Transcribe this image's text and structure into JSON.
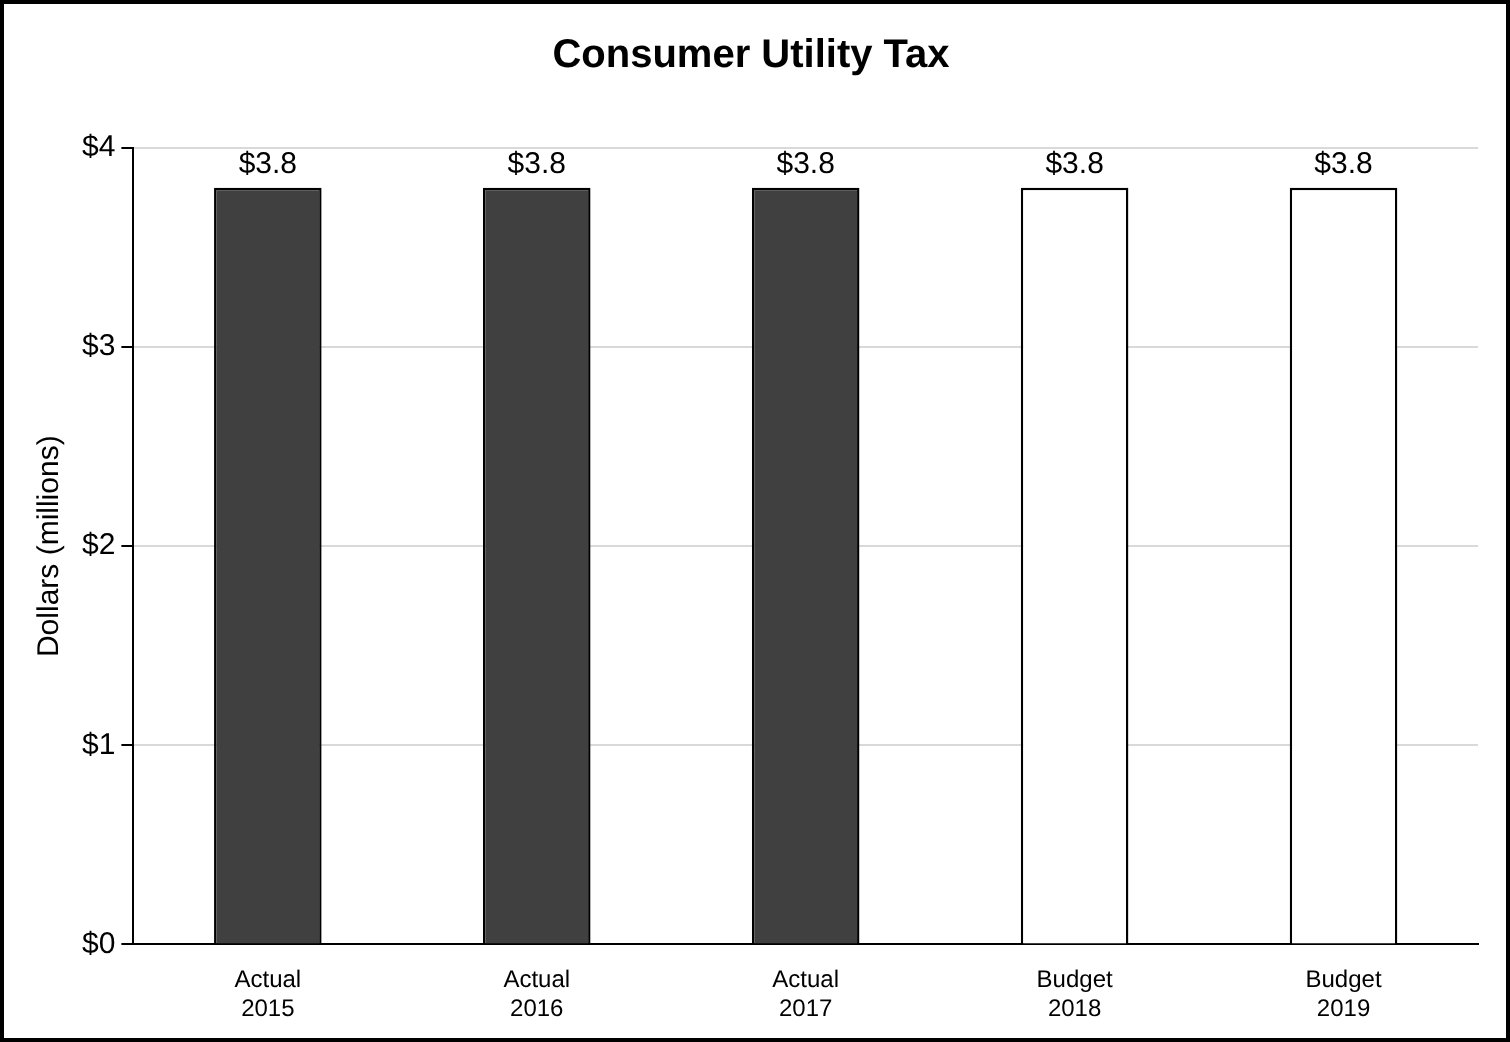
{
  "chart_data": {
    "type": "bar",
    "title": "Consumer Utility Tax",
    "ylabel": "Dollars (millions)",
    "categories": [
      "Actual\n2015",
      "Actual\n2016",
      "Actual\n2017",
      "Budget\n2018",
      "Budget\n2019"
    ],
    "values": [
      3.8,
      3.8,
      3.8,
      3.8,
      3.8
    ],
    "colors": [
      "#404040",
      "#404040",
      "#404040",
      "#ffffff",
      "#ffffff"
    ],
    "value_labels": [
      "$3.8",
      "$3.8",
      "$3.8",
      "$3.8",
      "$3.8"
    ],
    "ylim": [
      0,
      4
    ],
    "yticks": [
      {
        "value": 0,
        "label": "$0"
      },
      {
        "value": 1,
        "label": "$1"
      },
      {
        "value": 2,
        "label": "$2"
      },
      {
        "value": 3,
        "label": "$3"
      },
      {
        "value": 4,
        "label": "$4"
      }
    ],
    "grid": "y",
    "legend": false
  }
}
